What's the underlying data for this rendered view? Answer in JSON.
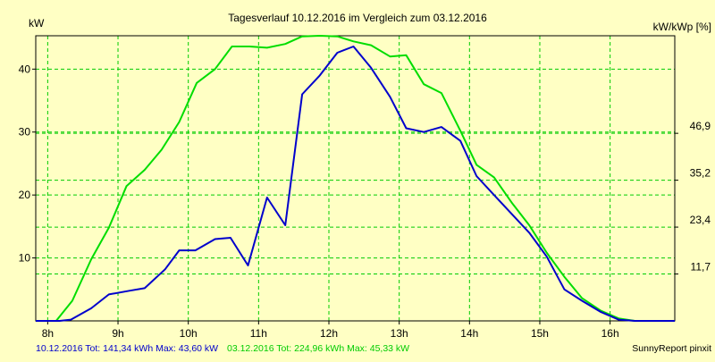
{
  "chart_data": {
    "type": "line",
    "title": "Tagesverlauf 10.12.2016 im Vergleich zum 03.12.2016",
    "ylabel_left": "kW",
    "ylabel_right": "kW/kWp [%]",
    "credit": "SunnyReport pinxit",
    "x_ticks": [
      {
        "x": 8,
        "label": "8h"
      },
      {
        "x": 9,
        "label": "9h"
      },
      {
        "x": 10,
        "label": "10h"
      },
      {
        "x": 11,
        "label": "11h"
      },
      {
        "x": 12,
        "label": "12h"
      },
      {
        "x": 13,
        "label": "13h"
      },
      {
        "x": 14,
        "label": "14h"
      },
      {
        "x": 15,
        "label": "15h"
      },
      {
        "x": 16,
        "label": "16h"
      }
    ],
    "xlim": [
      7.83,
      16.92
    ],
    "y_ticks_left": [
      10,
      20,
      30,
      40
    ],
    "ylim": [
      0,
      45.3
    ],
    "y_ticks_right": [
      {
        "y": 7.45,
        "label": "11,7"
      },
      {
        "y": 14.9,
        "label": "23,4"
      },
      {
        "y": 22.35,
        "label": "35,2"
      },
      {
        "y": 29.8,
        "label": "46,9"
      }
    ],
    "grid": true,
    "series": [
      {
        "name": "10.12.2016",
        "color": "#0000cc",
        "points": [
          [
            7.83,
            0
          ],
          [
            8.17,
            0
          ],
          [
            8.33,
            0.2
          ],
          [
            8.62,
            2.0
          ],
          [
            8.87,
            4.2
          ],
          [
            9.17,
            4.8
          ],
          [
            9.38,
            5.2
          ],
          [
            9.67,
            8.2
          ],
          [
            9.87,
            11.2
          ],
          [
            10.1,
            11.2
          ],
          [
            10.38,
            13.0
          ],
          [
            10.6,
            13.2
          ],
          [
            10.85,
            8.8
          ],
          [
            11.12,
            19.6
          ],
          [
            11.38,
            15.2
          ],
          [
            11.62,
            36.0
          ],
          [
            11.87,
            39.0
          ],
          [
            12.12,
            42.6
          ],
          [
            12.35,
            43.6
          ],
          [
            12.6,
            40.2
          ],
          [
            12.87,
            35.6
          ],
          [
            13.1,
            30.6
          ],
          [
            13.35,
            30.0
          ],
          [
            13.6,
            30.8
          ],
          [
            13.87,
            28.6
          ],
          [
            14.1,
            23.0
          ],
          [
            14.35,
            20.0
          ],
          [
            14.6,
            17.0
          ],
          [
            14.85,
            14.0
          ],
          [
            15.1,
            10.2
          ],
          [
            15.35,
            5.0
          ],
          [
            15.6,
            3.2
          ],
          [
            15.87,
            1.4
          ],
          [
            16.12,
            0.2
          ],
          [
            16.35,
            0
          ],
          [
            16.92,
            0
          ]
        ]
      },
      {
        "name": "03.12.2016",
        "color": "#00dd00",
        "points": [
          [
            7.83,
            0
          ],
          [
            8.12,
            0
          ],
          [
            8.35,
            3.2
          ],
          [
            8.62,
            9.8
          ],
          [
            8.87,
            14.8
          ],
          [
            9.12,
            21.4
          ],
          [
            9.38,
            24.0
          ],
          [
            9.62,
            27.2
          ],
          [
            9.87,
            31.6
          ],
          [
            10.12,
            37.8
          ],
          [
            10.38,
            40.0
          ],
          [
            10.62,
            43.6
          ],
          [
            10.87,
            43.6
          ],
          [
            11.12,
            43.4
          ],
          [
            11.38,
            44.0
          ],
          [
            11.62,
            45.2
          ],
          [
            11.87,
            45.3
          ],
          [
            12.12,
            45.2
          ],
          [
            12.35,
            44.4
          ],
          [
            12.6,
            43.8
          ],
          [
            12.87,
            42.0
          ],
          [
            13.1,
            42.2
          ],
          [
            13.35,
            37.6
          ],
          [
            13.6,
            36.2
          ],
          [
            13.87,
            30.2
          ],
          [
            14.1,
            24.8
          ],
          [
            14.35,
            22.8
          ],
          [
            14.6,
            18.8
          ],
          [
            14.85,
            15.2
          ],
          [
            15.1,
            10.8
          ],
          [
            15.35,
            7.0
          ],
          [
            15.6,
            3.6
          ],
          [
            15.87,
            1.6
          ],
          [
            16.12,
            0.4
          ],
          [
            16.35,
            0
          ],
          [
            16.92,
            0
          ]
        ]
      }
    ],
    "legend": [
      {
        "text": "10.12.2016 Tot: 141,34 kWh Max: 43,60 kW",
        "color": "#0000cc"
      },
      {
        "text": "03.12.2016 Tot: 224,96 kWh Max: 45,33 kW",
        "color": "#00cc00"
      }
    ]
  }
}
